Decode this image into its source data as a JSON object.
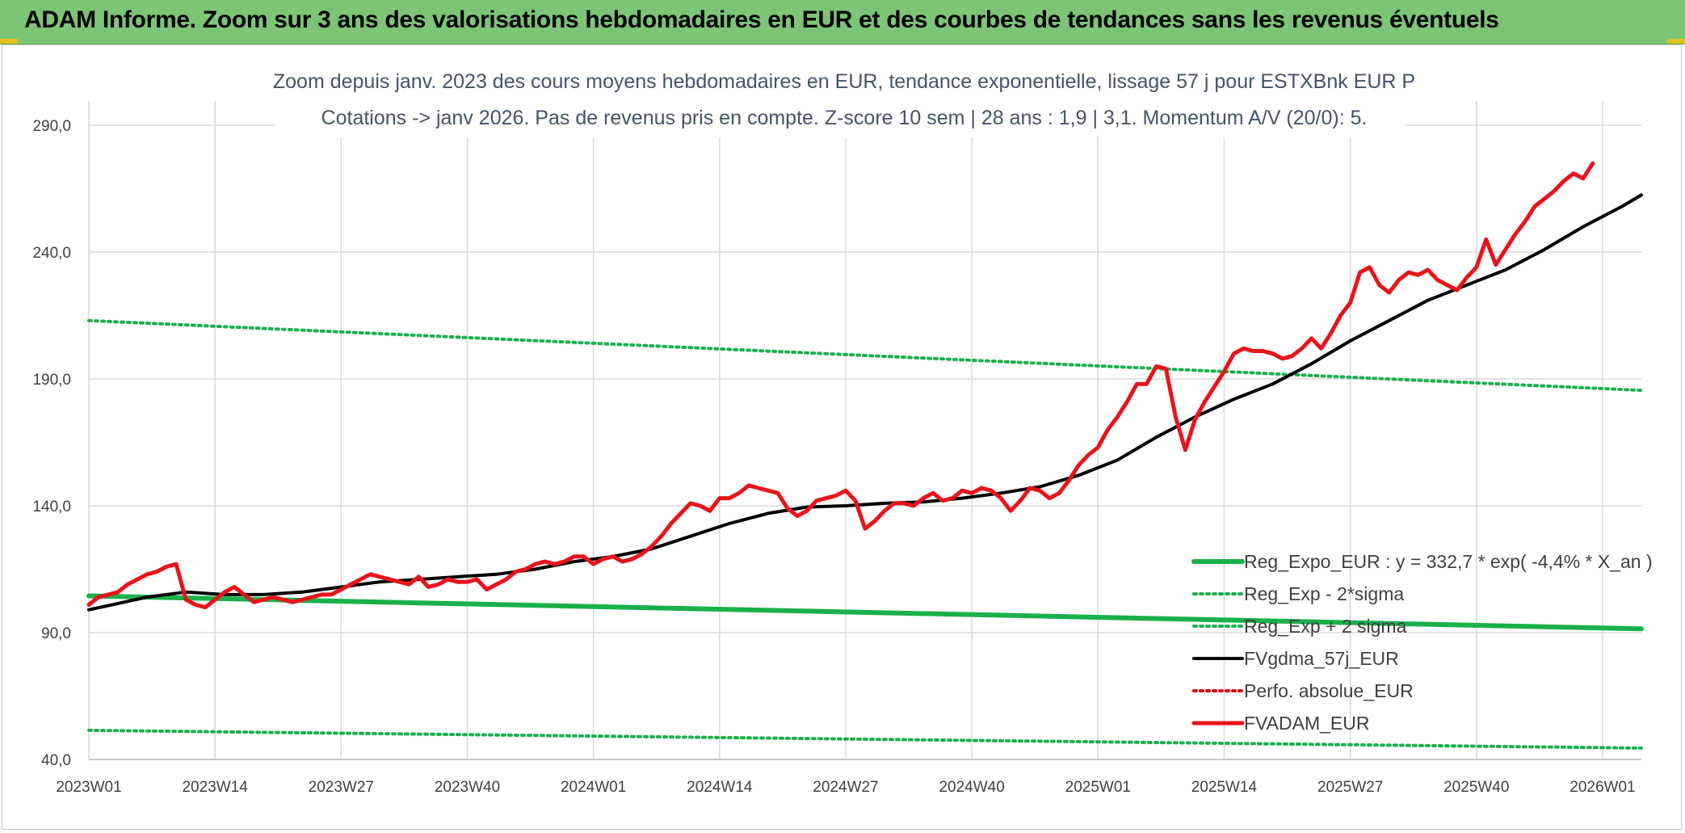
{
  "header": {
    "title": "ADAM Informe. Zoom sur 3 ans des valorisations hebdomadaires en EUR et des courbes de tendances sans les revenus éventuels"
  },
  "chart_data": {
    "type": "line",
    "subtitle_line1": "Zoom depuis janv. 2023 des cours moyens hebdomadaires en EUR, tendance exponentielle, lissage 57 j pour ESTXBnk EUR P",
    "subtitle_line2": "Cotations -> janv 2026. Pas de revenus pris en compte. Z-score 10 sem | 28 ans : 1,9  | 3,1. Momentum A/V (20/0): 5.",
    "ylim": [
      40,
      290
    ],
    "yticks": [
      "40,0",
      "90,0",
      "140,0",
      "190,0",
      "240,0",
      "290,0"
    ],
    "ytick_values": [
      40,
      90,
      140,
      190,
      240,
      290
    ],
    "xticks": [
      "2023W01",
      "2023W14",
      "2023W27",
      "2023W40",
      "2024W01",
      "2024W14",
      "2024W27",
      "2024W40",
      "2025W01",
      "2025W14",
      "2025W27",
      "2025W40",
      "2026W01"
    ],
    "xtick_weeks": [
      0,
      13,
      26,
      39,
      52,
      65,
      78,
      91,
      104,
      117,
      130,
      143,
      156
    ],
    "x_range_weeks": [
      0,
      160
    ],
    "grid": true,
    "legend_position": "bottom-right",
    "colors": {
      "reg_expo": "#1ab04b",
      "sigma": "#1ab04b",
      "fvgdma": "#000000",
      "perfo": "#e00000",
      "fvadam": "#e8141b"
    },
    "series": [
      {
        "name": "Reg_Expo_EUR : y = 332,7 * exp( -4,4% *  X_an )",
        "style": "solid-thick",
        "color": "#1ab04b",
        "points": [
          [
            0,
            104.5
          ],
          [
            160,
            91.5
          ]
        ]
      },
      {
        "name": "Reg_Exp - 2*sigma",
        "style": "dotted",
        "color": "#1ab04b",
        "points": [
          [
            0,
            51.5
          ],
          [
            160,
            44.5
          ]
        ]
      },
      {
        "name": "Reg_Exp + 2 sigma",
        "style": "dotted",
        "color": "#1ab04b",
        "points": [
          [
            0,
            213
          ],
          [
            160,
            185.5
          ]
        ]
      },
      {
        "name": "FVgdma_57j_EUR",
        "style": "solid",
        "color": "#000000",
        "points": [
          [
            0,
            99
          ],
          [
            3,
            101.5
          ],
          [
            6,
            104
          ],
          [
            10,
            106
          ],
          [
            14,
            105
          ],
          [
            18,
            105
          ],
          [
            22,
            106
          ],
          [
            26,
            108
          ],
          [
            30,
            110
          ],
          [
            34,
            111
          ],
          [
            38,
            112
          ],
          [
            42,
            113
          ],
          [
            46,
            115
          ],
          [
            50,
            118
          ],
          [
            54,
            120
          ],
          [
            58,
            123
          ],
          [
            62,
            128
          ],
          [
            66,
            133
          ],
          [
            70,
            137
          ],
          [
            74,
            139.5
          ],
          [
            78,
            140
          ],
          [
            82,
            141
          ],
          [
            86,
            141.5
          ],
          [
            90,
            143
          ],
          [
            94,
            145
          ],
          [
            98,
            147.5
          ],
          [
            102,
            152
          ],
          [
            106,
            158
          ],
          [
            110,
            167
          ],
          [
            114,
            175
          ],
          [
            118,
            182
          ],
          [
            122,
            188
          ],
          [
            126,
            196
          ],
          [
            130,
            205
          ],
          [
            134,
            213
          ],
          [
            138,
            221
          ],
          [
            142,
            227
          ],
          [
            146,
            233
          ],
          [
            150,
            241
          ],
          [
            154,
            250
          ],
          [
            158,
            258
          ],
          [
            160,
            262.5
          ]
        ]
      },
      {
        "name": "Perfo. absolue_EUR",
        "style": "dotted",
        "color": "#e00000",
        "points": []
      },
      {
        "name": "FVADAM_EUR",
        "style": "solid-thick",
        "color": "#e8141b",
        "points": [
          [
            0,
            101
          ],
          [
            1,
            104
          ],
          [
            2,
            105
          ],
          [
            3,
            106
          ],
          [
            4,
            109
          ],
          [
            5,
            111
          ],
          [
            6,
            113
          ],
          [
            7,
            114
          ],
          [
            8,
            116
          ],
          [
            9,
            117
          ],
          [
            10,
            103
          ],
          [
            11,
            101
          ],
          [
            12,
            100
          ],
          [
            13,
            103
          ],
          [
            14,
            106
          ],
          [
            15,
            108
          ],
          [
            16,
            105
          ],
          [
            17,
            102
          ],
          [
            18,
            103
          ],
          [
            19,
            104
          ],
          [
            20,
            103
          ],
          [
            21,
            102
          ],
          [
            22,
            103
          ],
          [
            23,
            104
          ],
          [
            24,
            105
          ],
          [
            25,
            105
          ],
          [
            26,
            107
          ],
          [
            27,
            109
          ],
          [
            28,
            111
          ],
          [
            29,
            113
          ],
          [
            30,
            112
          ],
          [
            31,
            111
          ],
          [
            32,
            110
          ],
          [
            33,
            109
          ],
          [
            34,
            112
          ],
          [
            35,
            108
          ],
          [
            36,
            109
          ],
          [
            37,
            111
          ],
          [
            38,
            110
          ],
          [
            39,
            110
          ],
          [
            40,
            111
          ],
          [
            41,
            107
          ],
          [
            42,
            109
          ],
          [
            43,
            111
          ],
          [
            44,
            114
          ],
          [
            45,
            115
          ],
          [
            46,
            117
          ],
          [
            47,
            118
          ],
          [
            48,
            117
          ],
          [
            49,
            118
          ],
          [
            50,
            120
          ],
          [
            51,
            120
          ],
          [
            52,
            117
          ],
          [
            53,
            119
          ],
          [
            54,
            120
          ],
          [
            55,
            118
          ],
          [
            56,
            119
          ],
          [
            57,
            121
          ],
          [
            58,
            124
          ],
          [
            59,
            128
          ],
          [
            60,
            133
          ],
          [
            61,
            137
          ],
          [
            62,
            141
          ],
          [
            63,
            140
          ],
          [
            64,
            138
          ],
          [
            65,
            143
          ],
          [
            66,
            143
          ],
          [
            67,
            145
          ],
          [
            68,
            148
          ],
          [
            69,
            147
          ],
          [
            70,
            146
          ],
          [
            71,
            145
          ],
          [
            72,
            139
          ],
          [
            73,
            136
          ],
          [
            74,
            138
          ],
          [
            75,
            142
          ],
          [
            76,
            143
          ],
          [
            77,
            144
          ],
          [
            78,
            146
          ],
          [
            79,
            142
          ],
          [
            80,
            131
          ],
          [
            81,
            134
          ],
          [
            82,
            138
          ],
          [
            83,
            141
          ],
          [
            84,
            141
          ],
          [
            85,
            140
          ],
          [
            86,
            143
          ],
          [
            87,
            145
          ],
          [
            88,
            142
          ],
          [
            89,
            143
          ],
          [
            90,
            146
          ],
          [
            91,
            145
          ],
          [
            92,
            147
          ],
          [
            93,
            146
          ],
          [
            94,
            143
          ],
          [
            95,
            138
          ],
          [
            96,
            142
          ],
          [
            97,
            147
          ],
          [
            98,
            146
          ],
          [
            99,
            143
          ],
          [
            100,
            145
          ],
          [
            101,
            150
          ],
          [
            102,
            156
          ],
          [
            103,
            160
          ],
          [
            104,
            163
          ],
          [
            105,
            170
          ],
          [
            106,
            175
          ],
          [
            107,
            181
          ],
          [
            108,
            188
          ],
          [
            109,
            188
          ],
          [
            110,
            195
          ],
          [
            111,
            194
          ],
          [
            112,
            175
          ],
          [
            113,
            162
          ],
          [
            114,
            174
          ],
          [
            115,
            181
          ],
          [
            116,
            187
          ],
          [
            117,
            193
          ],
          [
            118,
            200
          ],
          [
            119,
            202
          ],
          [
            120,
            201
          ],
          [
            121,
            201
          ],
          [
            122,
            200
          ],
          [
            123,
            198
          ],
          [
            124,
            199
          ],
          [
            125,
            202
          ],
          [
            126,
            206
          ],
          [
            127,
            202
          ],
          [
            128,
            208
          ],
          [
            129,
            215
          ],
          [
            130,
            220
          ],
          [
            131,
            232
          ],
          [
            132,
            234
          ],
          [
            133,
            227
          ],
          [
            134,
            224
          ],
          [
            135,
            229
          ],
          [
            136,
            232
          ],
          [
            137,
            231
          ],
          [
            138,
            233
          ],
          [
            139,
            229
          ],
          [
            140,
            227
          ],
          [
            141,
            225
          ],
          [
            142,
            230
          ],
          [
            143,
            234
          ],
          [
            144,
            245
          ],
          [
            145,
            235
          ],
          [
            146,
            241
          ],
          [
            147,
            247
          ],
          [
            148,
            252
          ],
          [
            149,
            258
          ],
          [
            150,
            261
          ],
          [
            151,
            264
          ],
          [
            152,
            268
          ],
          [
            153,
            271
          ],
          [
            154,
            269
          ],
          [
            155,
            275
          ]
        ]
      }
    ]
  }
}
